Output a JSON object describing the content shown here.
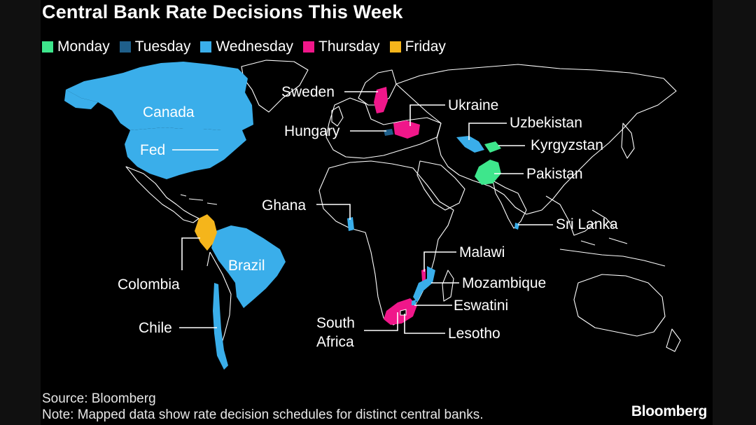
{
  "title": "Central Bank Rate Decisions This Week",
  "colors": {
    "monday": "#3ee68c",
    "tuesday": "#1f5f8a",
    "wednesday": "#3aaeea",
    "thursday": "#f0178a",
    "friday": "#f5b51b",
    "land_outline": "#ffffff",
    "background": "#000000"
  },
  "legend": [
    {
      "label": "Monday",
      "color": "#3ee68c"
    },
    {
      "label": "Tuesday",
      "color": "#1f5f8a"
    },
    {
      "label": "Wednesday",
      "color": "#3aaeea"
    },
    {
      "label": "Thursday",
      "color": "#f0178a"
    },
    {
      "label": "Friday",
      "color": "#f5b51b"
    }
  ],
  "countries": {
    "canada": {
      "label": "Canada",
      "day": "Wednesday"
    },
    "fed": {
      "label": "Fed",
      "day": "Wednesday"
    },
    "colombia": {
      "label": "Colombia",
      "day": "Friday"
    },
    "brazil": {
      "label": "Brazil",
      "day": "Wednesday"
    },
    "chile": {
      "label": "Chile",
      "day": "Wednesday"
    },
    "sweden": {
      "label": "Sweden",
      "day": "Thursday"
    },
    "ukraine": {
      "label": "Ukraine",
      "day": "Thursday"
    },
    "hungary": {
      "label": "Hungary",
      "day": "Tuesday"
    },
    "uzbekistan": {
      "label": "Uzbekistan",
      "day": "Wednesday"
    },
    "kyrgyzstan": {
      "label": "Kyrgyzstan",
      "day": "Monday"
    },
    "pakistan": {
      "label": "Pakistan",
      "day": "Monday"
    },
    "ghana": {
      "label": "Ghana",
      "day": "Wednesday"
    },
    "sri_lanka": {
      "label": "Sri Lanka",
      "day": "Wednesday"
    },
    "malawi": {
      "label": "Malawi",
      "day": "Thursday"
    },
    "mozambique": {
      "label": "Mozambique",
      "day": "Wednesday"
    },
    "eswatini": {
      "label": "Eswatini",
      "day": "Wednesday"
    },
    "lesotho": {
      "label": "Lesotho",
      "day": "Thursday"
    },
    "south_africa": {
      "label_line1": "South",
      "label_line2": "Africa",
      "day": "Thursday"
    }
  },
  "footer": {
    "source": "Source: Bloomberg",
    "note": "Note: Mapped data show rate decision schedules for distinct central banks."
  },
  "brand": "Bloomberg"
}
